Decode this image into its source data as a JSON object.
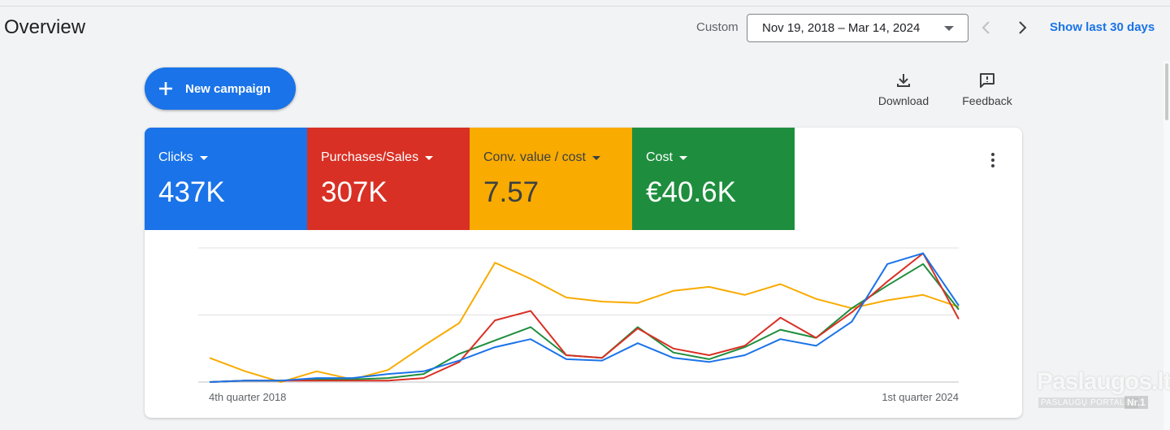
{
  "header": {
    "title": "Overview",
    "custom_label": "Custom",
    "date_range": "Nov 19, 2018 – Mar 14, 2024",
    "show_last_label": "Show last 30 days"
  },
  "actions": {
    "new_campaign_label": "New campaign",
    "download_label": "Download",
    "feedback_label": "Feedback"
  },
  "metrics": [
    {
      "label": "Clicks",
      "value": "437K",
      "color": "#1a73e8"
    },
    {
      "label": "Purchases/Sales",
      "value": "307K",
      "color": "#d93025"
    },
    {
      "label": "Conv. value / cost",
      "value": "7.57",
      "color": "#f9ab00"
    },
    {
      "label": "Cost",
      "value": "€40.6K",
      "color": "#1e8e3e"
    }
  ],
  "chart_data": {
    "type": "line",
    "x_start_label": "4th quarter 2018",
    "x_end_label": "1st quarter 2024",
    "ylim": [
      0,
      100
    ],
    "grid": true,
    "series": [
      {
        "color": "#f9ab00",
        "values": [
          18,
          8,
          0,
          8,
          2,
          9,
          27,
          44,
          89,
          77,
          63,
          60,
          59,
          68,
          71,
          65,
          73,
          62,
          55,
          61,
          65,
          56
        ]
      },
      {
        "color": "#1e8e3e",
        "values": [
          0,
          1,
          1,
          2,
          2,
          3,
          6,
          21,
          31,
          41,
          20,
          18,
          41,
          22,
          17,
          26,
          39,
          33,
          55,
          72,
          88,
          54
        ]
      },
      {
        "color": "#d93025",
        "values": [
          0,
          1,
          1,
          1,
          1,
          1,
          3,
          15,
          46,
          53,
          20,
          18,
          40,
          25,
          20,
          27,
          48,
          33,
          52,
          75,
          96,
          47
        ]
      },
      {
        "color": "#1a73e8",
        "values": [
          0,
          1,
          1,
          3,
          3,
          6,
          8,
          16,
          26,
          32,
          17,
          16,
          29,
          18,
          15,
          20,
          32,
          27,
          45,
          88,
          96,
          57
        ]
      }
    ]
  },
  "watermark": {
    "main": "Paslaugos.lt",
    "sub": "PASLAUGŲ PORTALAS",
    "nr": "Nr.1"
  }
}
